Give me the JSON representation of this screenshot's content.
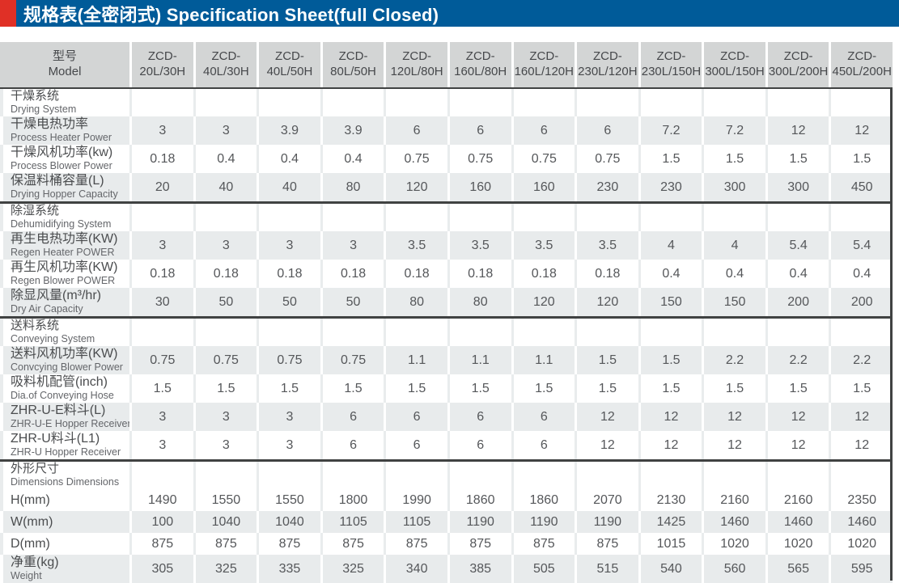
{
  "title": "规格表(全密闭式) Specification Sheet(full Closed)",
  "header": {
    "model_zh": "型号",
    "model_en": "Model"
  },
  "models": [
    {
      "l1": "ZCD-",
      "l2": "20L/30H"
    },
    {
      "l1": "ZCD-",
      "l2": "40L/30H"
    },
    {
      "l1": "ZCD-",
      "l2": "40L/50H"
    },
    {
      "l1": "ZCD-",
      "l2": "80L/50H"
    },
    {
      "l1": "ZCD-",
      "l2": "120L/80H"
    },
    {
      "l1": "ZCD-",
      "l2": "160L/80H"
    },
    {
      "l1": "ZCD-",
      "l2": "160L/120H"
    },
    {
      "l1": "ZCD-",
      "l2": "230L/120H"
    },
    {
      "l1": "ZCD-",
      "l2": "230L/150H"
    },
    {
      "l1": "ZCD-",
      "l2": "300L/150H"
    },
    {
      "l1": "ZCD-",
      "l2": "300L/200H"
    },
    {
      "l1": "ZCD-",
      "l2": "450L/200H"
    }
  ],
  "sections": [
    {
      "zh": "干燥系统",
      "en": "Drying System",
      "rows": [
        {
          "zh": "干燥电热功率",
          "en": "Process Heater Power",
          "striped": true,
          "short": false,
          "values": [
            "3",
            "3",
            "3.9",
            "3.9",
            "6",
            "6",
            "6",
            "6",
            "7.2",
            "7.2",
            "12",
            "12"
          ]
        },
        {
          "zh": "干燥风机功率(kw)",
          "en": "Process Blower Power",
          "striped": false,
          "short": false,
          "values": [
            "0.18",
            "0.4",
            "0.4",
            "0.4",
            "0.75",
            "0.75",
            "0.75",
            "0.75",
            "1.5",
            "1.5",
            "1.5",
            "1.5"
          ]
        },
        {
          "zh": "保温料桶容量(L)",
          "en": "Drying Hopper Capacity",
          "striped": true,
          "short": false,
          "values": [
            "20",
            "40",
            "40",
            "80",
            "120",
            "160",
            "160",
            "230",
            "230",
            "300",
            "300",
            "450"
          ]
        }
      ]
    },
    {
      "zh": "除湿系统",
      "en": "Dehumidifying System",
      "rows": [
        {
          "zh": "再生电热功率(KW)",
          "en": "Regen Heater POWER",
          "striped": true,
          "short": false,
          "values": [
            "3",
            "3",
            "3",
            "3",
            "3.5",
            "3.5",
            "3.5",
            "3.5",
            "4",
            "4",
            "5.4",
            "5.4"
          ]
        },
        {
          "zh": "再生风机功率(KW)",
          "en": "Regen Blower POWER",
          "striped": false,
          "short": false,
          "values": [
            "0.18",
            "0.18",
            "0.18",
            "0.18",
            "0.18",
            "0.18",
            "0.18",
            "0.18",
            "0.4",
            "0.4",
            "0.4",
            "0.4"
          ]
        },
        {
          "zh": "除显风量(m³/hr)",
          "en": "Dry Air Capacity",
          "striped": true,
          "short": false,
          "values": [
            "30",
            "50",
            "50",
            "50",
            "80",
            "80",
            "120",
            "120",
            "150",
            "150",
            "200",
            "200"
          ]
        }
      ]
    },
    {
      "zh": "送料系统",
      "en": "Conveying System",
      "rows": [
        {
          "zh": "送料风机功率(KW)",
          "en": "Convcying Blower Power",
          "striped": true,
          "short": false,
          "values": [
            "0.75",
            "0.75",
            "0.75",
            "0.75",
            "1.1",
            "1.1",
            "1.1",
            "1.5",
            "1.5",
            "2.2",
            "2.2",
            "2.2"
          ]
        },
        {
          "zh": "吸料机配管(inch)",
          "en": "Dia.of Conveying Hose",
          "striped": false,
          "short": false,
          "values": [
            "1.5",
            "1.5",
            "1.5",
            "1.5",
            "1.5",
            "1.5",
            "1.5",
            "1.5",
            "1.5",
            "1.5",
            "1.5",
            "1.5"
          ]
        },
        {
          "zh": "ZHR-U-E料斗(L)",
          "en": "ZHR-U-E Hopper Receiver",
          "striped": true,
          "short": false,
          "values": [
            "3",
            "3",
            "3",
            "6",
            "6",
            "6",
            "6",
            "12",
            "12",
            "12",
            "12",
            "12"
          ]
        },
        {
          "zh": "ZHR-U料斗(L1)",
          "en": "ZHR-U Hopper Receiver",
          "striped": false,
          "short": false,
          "values": [
            "3",
            "3",
            "3",
            "6",
            "6",
            "6",
            "6",
            "12",
            "12",
            "12",
            "12",
            "12"
          ]
        }
      ]
    },
    {
      "zh": "外形尺寸",
      "en": "Dimensions Dimensions",
      "rows": [
        {
          "zh": "H(mm)",
          "en": "",
          "striped": false,
          "short": true,
          "values": [
            "1490",
            "1550",
            "1550",
            "1800",
            "1990",
            "1860",
            "1860",
            "2070",
            "2130",
            "2160",
            "2160",
            "2350"
          ]
        },
        {
          "zh": "W(mm)",
          "en": "",
          "striped": true,
          "short": true,
          "values": [
            "100",
            "1040",
            "1040",
            "1105",
            "1105",
            "1190",
            "1190",
            "1190",
            "1425",
            "1460",
            "1460",
            "1460"
          ]
        },
        {
          "zh": "D(mm)",
          "en": "",
          "striped": false,
          "short": true,
          "values": [
            "875",
            "875",
            "875",
            "875",
            "875",
            "875",
            "875",
            "875",
            "1015",
            "1020",
            "1020",
            "1020"
          ]
        },
        {
          "zh": "净重(kg)",
          "en": "Weight",
          "striped": true,
          "short": false,
          "values": [
            "305",
            "325",
            "335",
            "325",
            "340",
            "385",
            "505",
            "515",
            "540",
            "560",
            "565",
            "595"
          ]
        }
      ]
    }
  ],
  "colors": {
    "title_bg": "#005B99",
    "accent_red": "#E03026",
    "header_cell_bg": "#D3D5D5",
    "stripe_bg": "#E8EBEC",
    "divider": "#404242",
    "text_dark": "#46484B",
    "text_value": "#55575A"
  }
}
